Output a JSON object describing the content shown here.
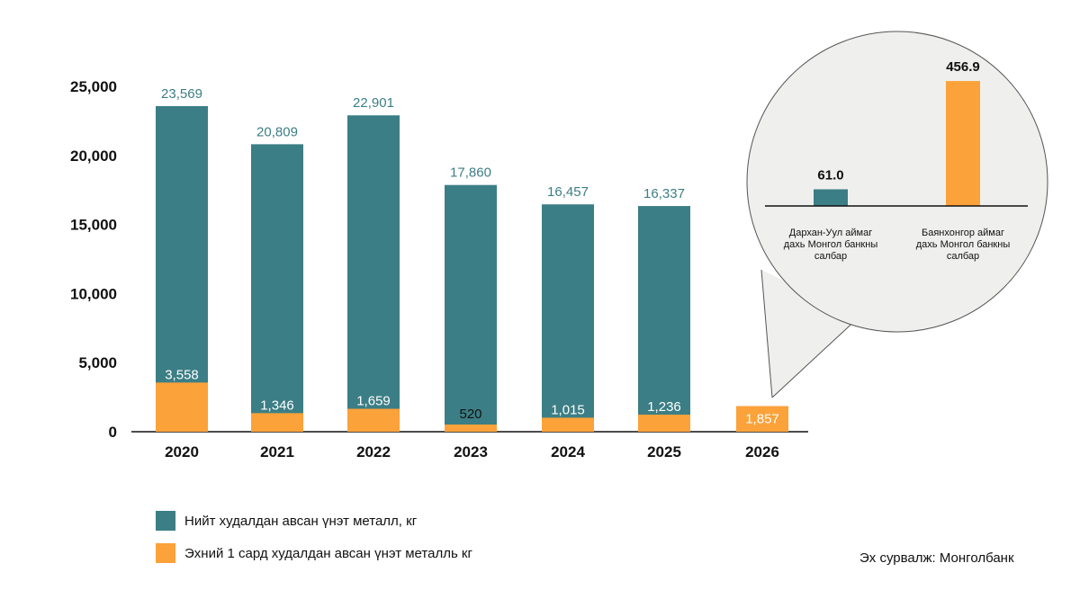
{
  "colors": {
    "total": "#3c7e85",
    "first_month": "#fba23a",
    "axis": "#111111",
    "inset_bg": "#efefee"
  },
  "chart_data": [
    {
      "type": "bar",
      "stacked": false,
      "categories": [
        "2020",
        "2021",
        "2022",
        "2023",
        "2024",
        "2025",
        "2026"
      ],
      "series": [
        {
          "name": "Нийт худалдан авсан үнэт металл, кг",
          "values": [
            23569,
            20809,
            22901,
            17860,
            16457,
            16337,
            null
          ],
          "labels": [
            "23,569",
            "20,809",
            "22,901",
            "17,860",
            "16,457",
            "16,337",
            ""
          ]
        },
        {
          "name": "Эхний 1 сард худалдан авсан үнэт металль кг",
          "values": [
            3558,
            1346,
            1659,
            520,
            1015,
            1236,
            1857
          ],
          "labels": [
            "3,558",
            "1,346",
            "1,659",
            "520",
            "1,015",
            "1,236",
            "1,857"
          ]
        }
      ],
      "ylim": [
        0,
        25000
      ],
      "yticks": [
        0,
        5000,
        10000,
        15000,
        20000,
        25000
      ],
      "ytick_labels": [
        "0",
        "5,000",
        "10,000",
        "15,000",
        "20,000",
        "25,000"
      ],
      "grid": false,
      "legend_position": "bottom-left"
    },
    {
      "type": "bar",
      "categories": [
        "Дархан-Уул аймаг дахь Монгол банкны салбар",
        "Баянхонгор аймаг дахь Монгол банкны салбар"
      ],
      "category_lines": [
        [
          "Дархан-Уул аймаг",
          "дахь Монгол банкны",
          "салбар"
        ],
        [
          "Баянхонгор аймаг",
          "дахь Монгол банкны",
          "салбар"
        ]
      ],
      "values": [
        61.0,
        456.9
      ],
      "labels": [
        "61.0",
        "456.9"
      ],
      "ylim": [
        0,
        500
      ]
    }
  ],
  "source": "Эх сурвалж: Монголбанк"
}
